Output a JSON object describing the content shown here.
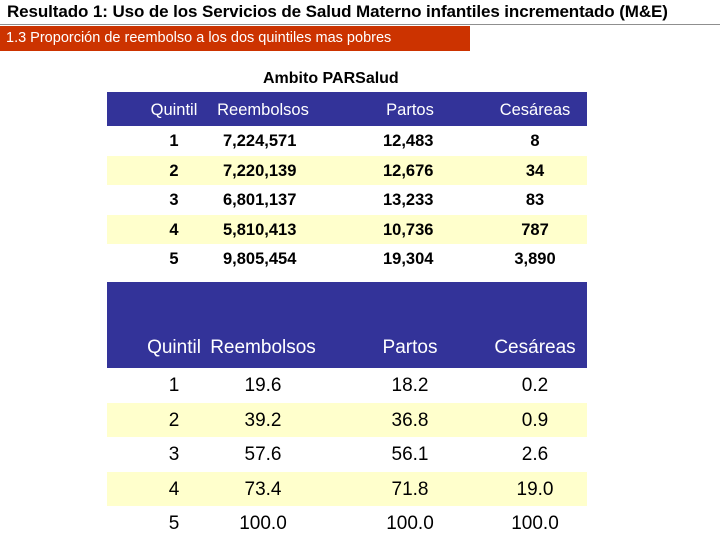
{
  "header": {
    "title": "Resultado 1: Uso de los Servicios de Salud Materno infantiles incrementado (M&E)",
    "subtitle": "1.3 Proporción de reembolso a los dos quintiles mas pobres"
  },
  "section_label": "Ambito PARSalud",
  "table1": {
    "columns": [
      "Quintil",
      "Reembolsos",
      "Partos",
      "Cesáreas"
    ],
    "rows": [
      [
        "1",
        "7,224,571",
        "12,483",
        "8"
      ],
      [
        "2",
        "7,220,139",
        "12,676",
        "34"
      ],
      [
        "3",
        "6,801,137",
        "13,233",
        "83"
      ],
      [
        "4",
        "5,810,413",
        "10,736",
        "787"
      ],
      [
        "5",
        "9,805,454",
        "19,304",
        "3,890"
      ]
    ]
  },
  "table2": {
    "columns": [
      "Quintil",
      "Reembolsos",
      "Partos",
      "Cesáreas"
    ],
    "rows": [
      [
        "1",
        "19.6",
        "18.2",
        "0.2"
      ],
      [
        "2",
        "39.2",
        "36.8",
        "0.9"
      ],
      [
        "3",
        "57.6",
        "56.1",
        "2.6"
      ],
      [
        "4",
        "73.4",
        "71.8",
        "19.0"
      ],
      [
        "5",
        "100.0",
        "100.0",
        "100.0"
      ]
    ]
  },
  "colors": {
    "header_bg": "#333399",
    "subtitle_bg": "#cc3300",
    "row_highlight": "#ffffcc"
  }
}
